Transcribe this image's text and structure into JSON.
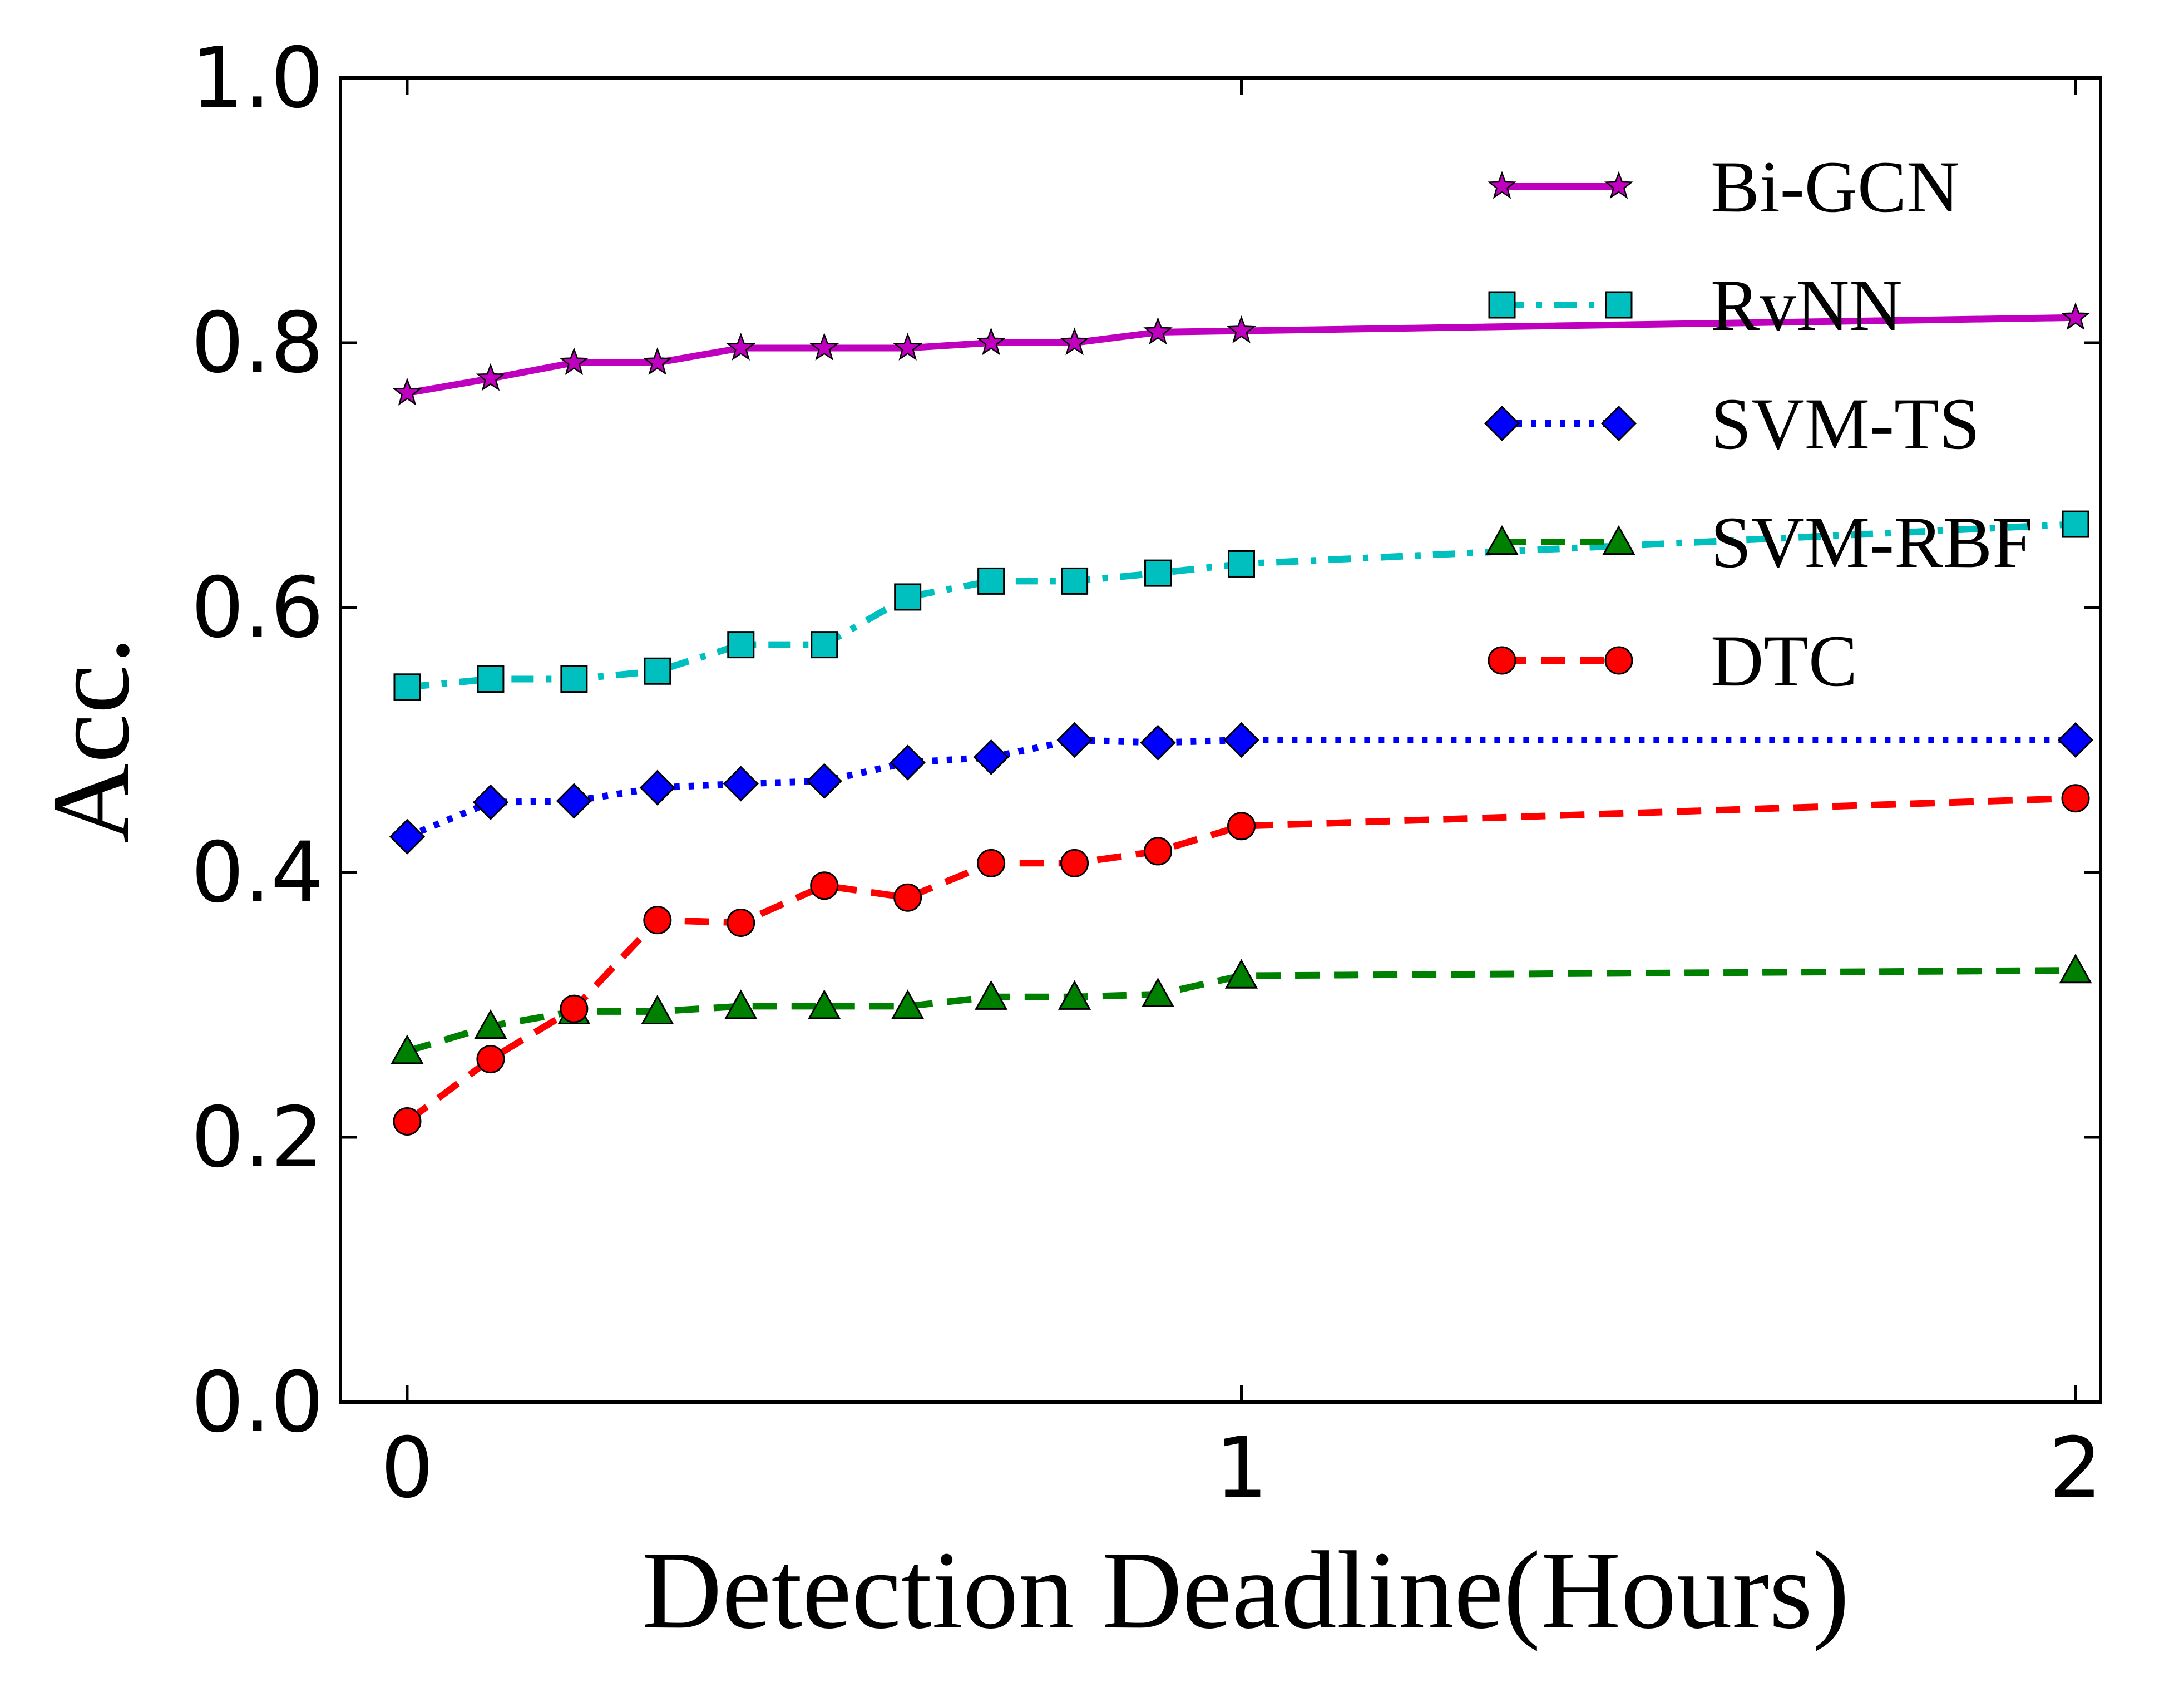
{
  "chart_data": {
    "type": "line",
    "title": "",
    "xlabel": "Detection Deadline(Hours)",
    "ylabel": "Acc.",
    "xlim": [
      -0.08,
      2.03
    ],
    "ylim": [
      0.0,
      1.0
    ],
    "xticks": [
      0,
      1,
      2
    ],
    "xtick_labels": [
      "0",
      "1",
      "2"
    ],
    "yticks": [
      0.0,
      0.2,
      0.4,
      0.6,
      0.8,
      1.0
    ],
    "ytick_labels": [
      "0.0",
      "0.2",
      "0.4",
      "0.6",
      "0.8",
      "1.0"
    ],
    "grid": false,
    "legend_position": "top-right",
    "x": [
      0,
      0.1,
      0.2,
      0.3,
      0.4,
      0.5,
      0.6,
      0.7,
      0.8,
      0.9,
      1.0,
      2.0
    ],
    "series": [
      {
        "name": "Bi-GCN",
        "color": "#bf00bf",
        "marker": "star",
        "line_style": "solid",
        "values": [
          0.762,
          0.773,
          0.785,
          0.785,
          0.796,
          0.796,
          0.796,
          0.8,
          0.8,
          0.808,
          0.809,
          0.819
        ]
      },
      {
        "name": "RvNN",
        "color": "#00bfbf",
        "marker": "square",
        "line_style": "dashdot",
        "values": [
          0.54,
          0.546,
          0.546,
          0.552,
          0.572,
          0.572,
          0.608,
          0.62,
          0.62,
          0.626,
          0.633,
          0.663
        ]
      },
      {
        "name": "SVM-TS",
        "color": "#0000ff",
        "marker": "diamond",
        "line_style": "dotted",
        "values": [
          0.427,
          0.453,
          0.454,
          0.464,
          0.467,
          0.469,
          0.483,
          0.487,
          0.5,
          0.498,
          0.5,
          0.5
        ]
      },
      {
        "name": "SVM-RBF",
        "color": "#008000",
        "marker": "triangle",
        "line_style": "dashed",
        "values": [
          0.265,
          0.284,
          0.295,
          0.295,
          0.299,
          0.299,
          0.299,
          0.306,
          0.306,
          0.308,
          0.322,
          0.326
        ]
      },
      {
        "name": "DTC",
        "color": "#ff0000",
        "marker": "circle",
        "line_style": "dashed",
        "values": [
          0.212,
          0.259,
          0.297,
          0.364,
          0.362,
          0.39,
          0.381,
          0.407,
          0.407,
          0.416,
          0.435,
          0.456
        ]
      }
    ]
  }
}
